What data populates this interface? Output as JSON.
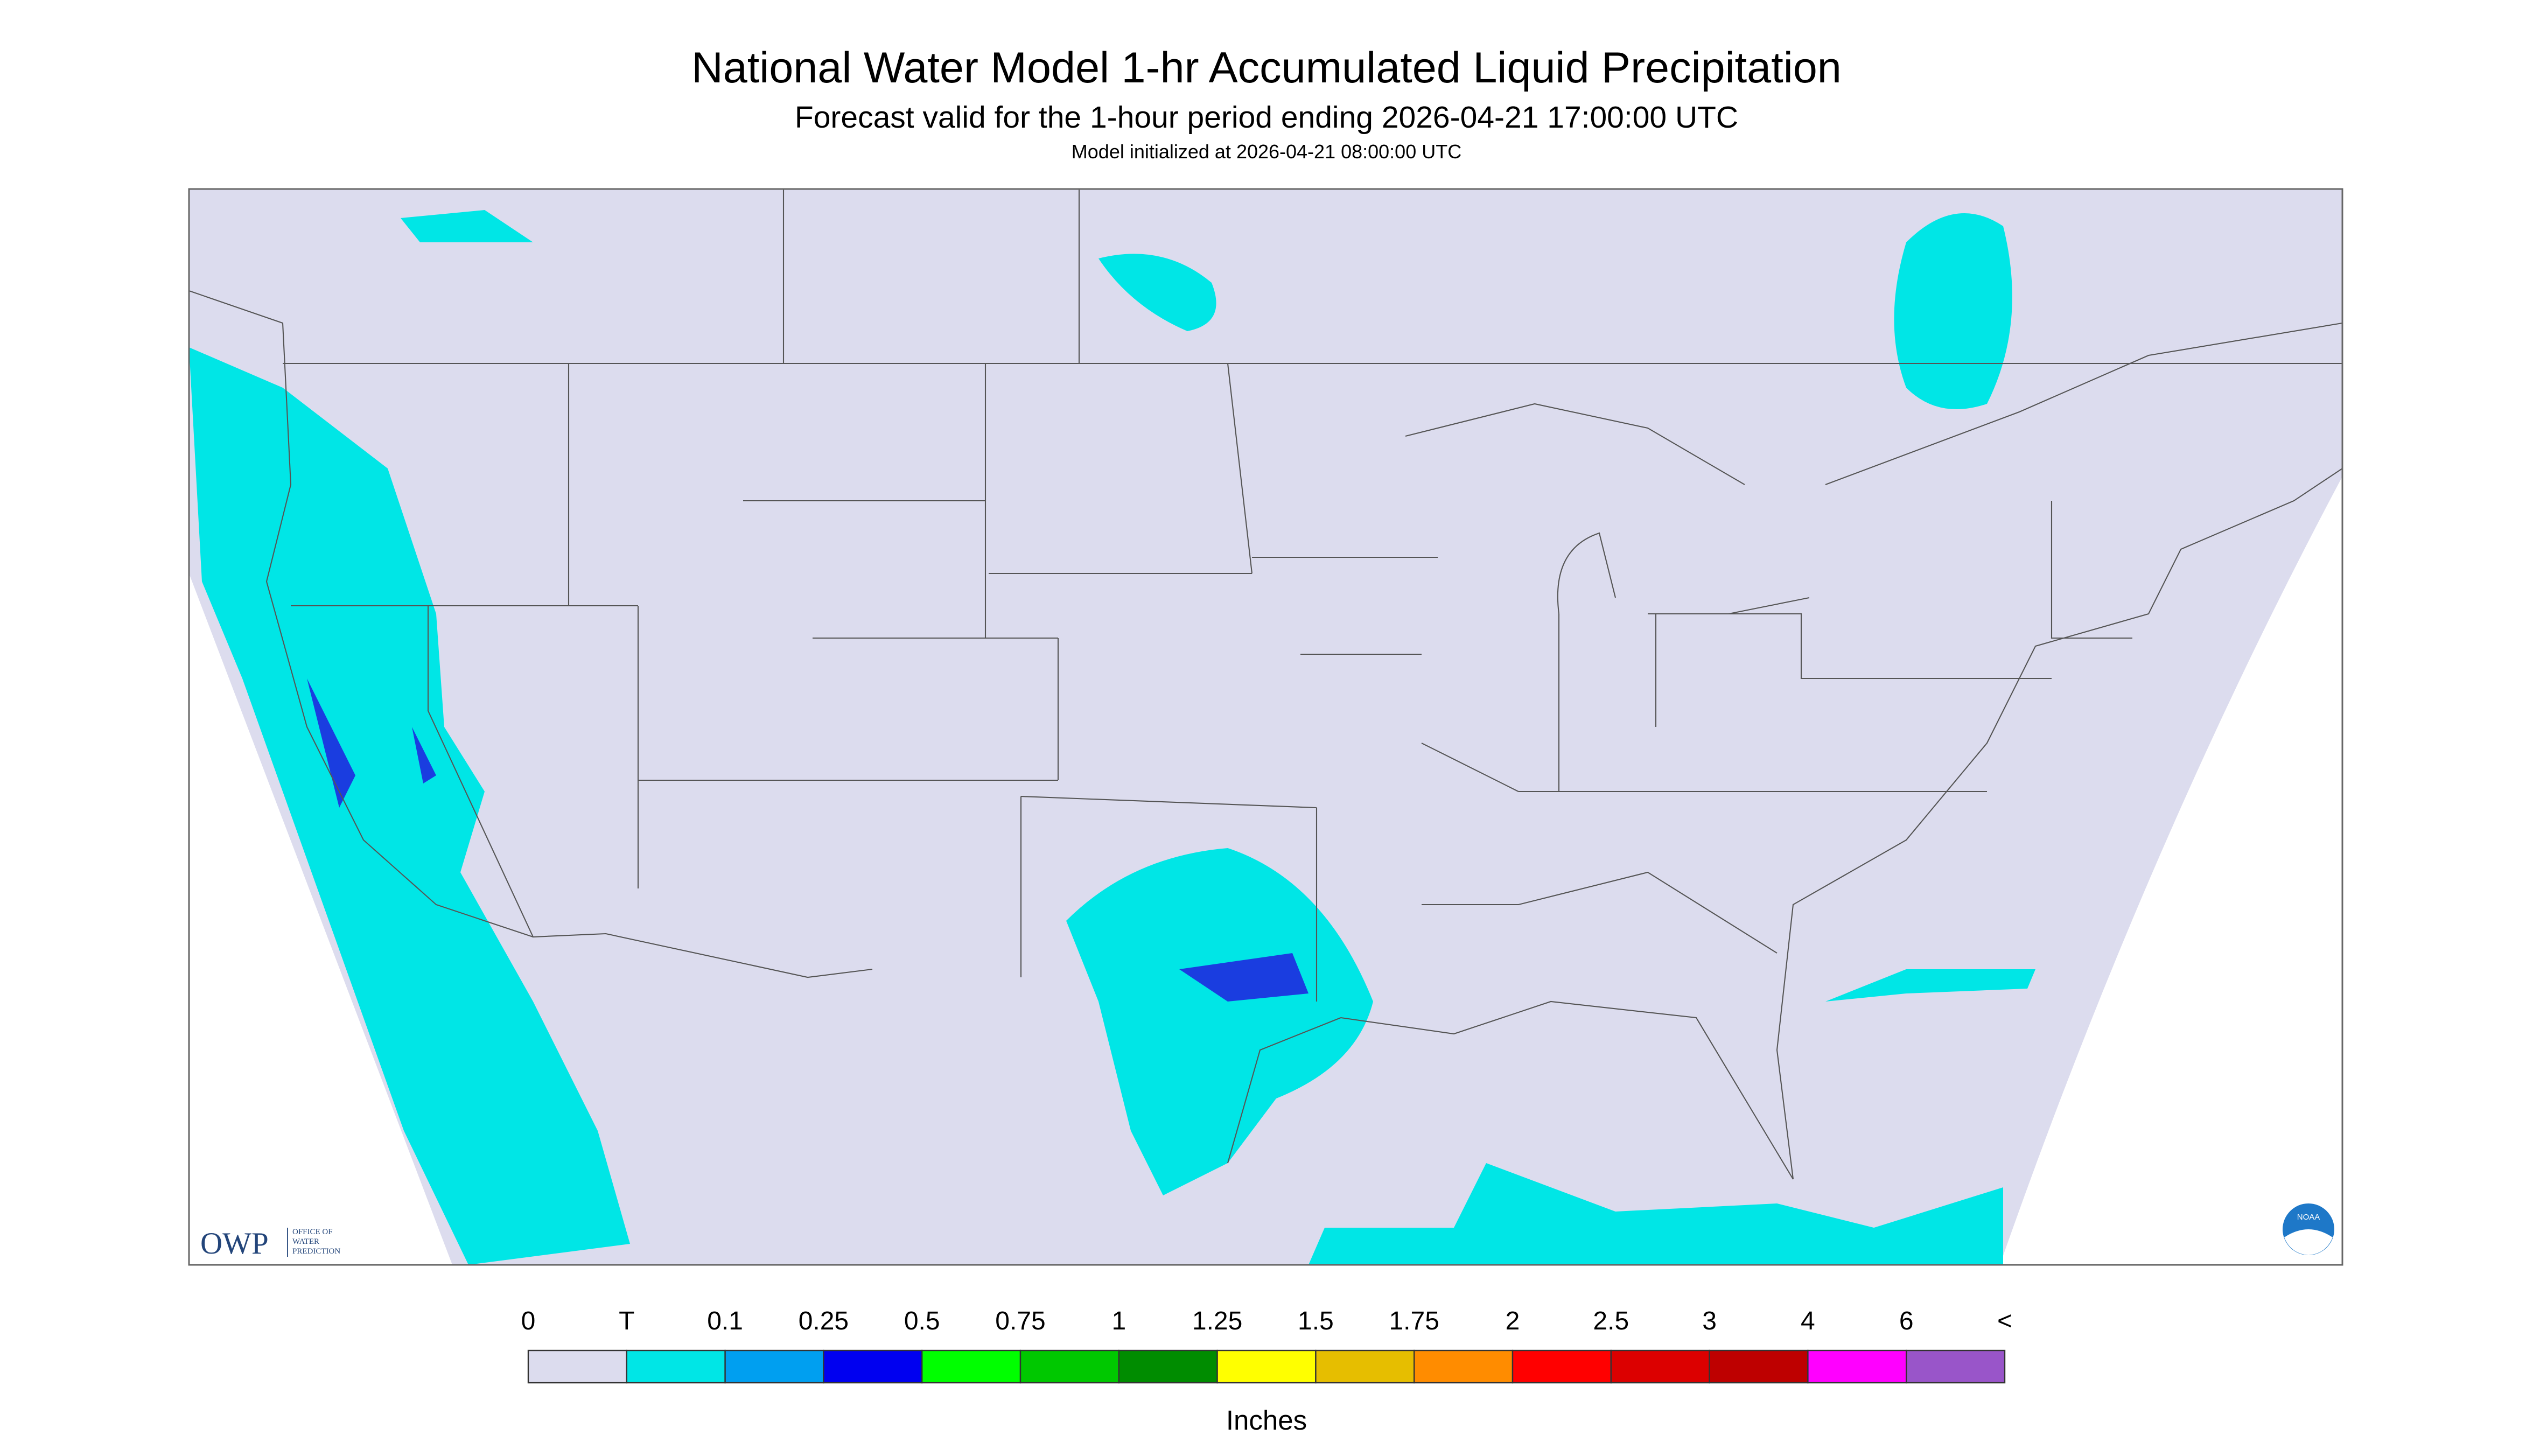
{
  "header": {
    "title": "National Water Model 1-hr Accumulated Liquid Precipitation",
    "subtitle": "Forecast valid for the 1-hour period ending 2026-04-21 17:00:00 UTC",
    "init": "Model initialized at 2026-04-21 08:00:00 UTC"
  },
  "logos": {
    "owp": "OWP",
    "owp_line1": "OFFICE OF",
    "owp_line2": "WATER",
    "owp_line3": "PREDICTION",
    "noaa": "NOAA"
  },
  "legend": {
    "labels": [
      "0",
      "T",
      "0.1",
      "0.25",
      "0.5",
      "0.75",
      "1",
      "1.25",
      "1.5",
      "1.75",
      "2",
      "2.5",
      "3",
      "4",
      "6",
      "<"
    ],
    "colors": [
      "#dcdcee",
      "#00e6e6",
      "#009ff0",
      "#0000f0",
      "#00ff00",
      "#00c800",
      "#008c00",
      "#ffff00",
      "#e6be00",
      "#ff8c00",
      "#ff0000",
      "#dc0000",
      "#be0000",
      "#ff00ff",
      "#9955c9"
    ],
    "unit": "Inches"
  }
}
